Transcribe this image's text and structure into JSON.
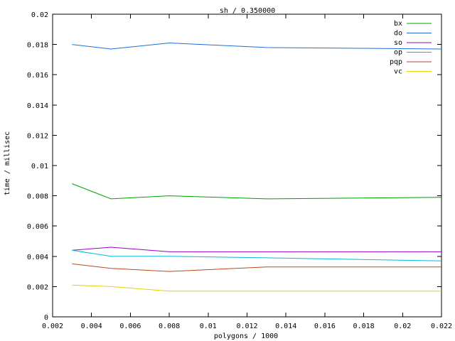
{
  "chart_data": {
    "type": "line",
    "title": "sh / 0.350000",
    "xlabel": "polygons / 1000",
    "ylabel": "time / millisec",
    "xlim": [
      0.002,
      0.022
    ],
    "ylim": [
      0,
      0.02
    ],
    "xticks": [
      "0.002",
      "0.004",
      "0.006",
      "0.008",
      "0.01",
      "0.012",
      "0.014",
      "0.016",
      "0.018",
      "0.02",
      "0.022"
    ],
    "yticks": [
      "0",
      "0.002",
      "0.004",
      "0.006",
      "0.008",
      "0.01",
      "0.012",
      "0.014",
      "0.016",
      "0.018",
      "0.02"
    ],
    "xtick_values": [
      0.002,
      0.004,
      0.006,
      0.008,
      0.01,
      0.012,
      0.014,
      0.016,
      0.018,
      0.02,
      0.022
    ],
    "ytick_values": [
      0,
      0.002,
      0.004,
      0.006,
      0.008,
      0.01,
      0.012,
      0.014,
      0.016,
      0.018,
      0.02
    ],
    "grid": false,
    "legend_position": "top-right",
    "x": [
      0.003,
      0.005,
      0.008,
      0.013,
      0.022
    ],
    "series": [
      {
        "name": "bx",
        "color": "#00a000",
        "values": [
          0.0088,
          0.0078,
          0.008,
          0.0078,
          0.0079
        ]
      },
      {
        "name": "do",
        "color": "#1f6fd6",
        "values": [
          0.018,
          0.0177,
          0.0181,
          0.0178,
          0.0177
        ]
      },
      {
        "name": "so",
        "color": "#a000c8",
        "values": [
          0.0044,
          0.0046,
          0.0043,
          0.0043,
          0.0043
        ]
      },
      {
        "name": "op",
        "color": "#00bcd4",
        "values": [
          0.0044,
          0.004,
          0.004,
          0.0039,
          0.0037
        ]
      },
      {
        "name": "pqp",
        "color": "#b84a1b",
        "values": [
          0.0035,
          0.0032,
          0.003,
          0.0033,
          0.0033
        ]
      },
      {
        "name": "vc",
        "color": "#e6d300",
        "values": [
          0.0021,
          0.002,
          0.0017,
          0.0017,
          0.0017
        ]
      }
    ]
  }
}
